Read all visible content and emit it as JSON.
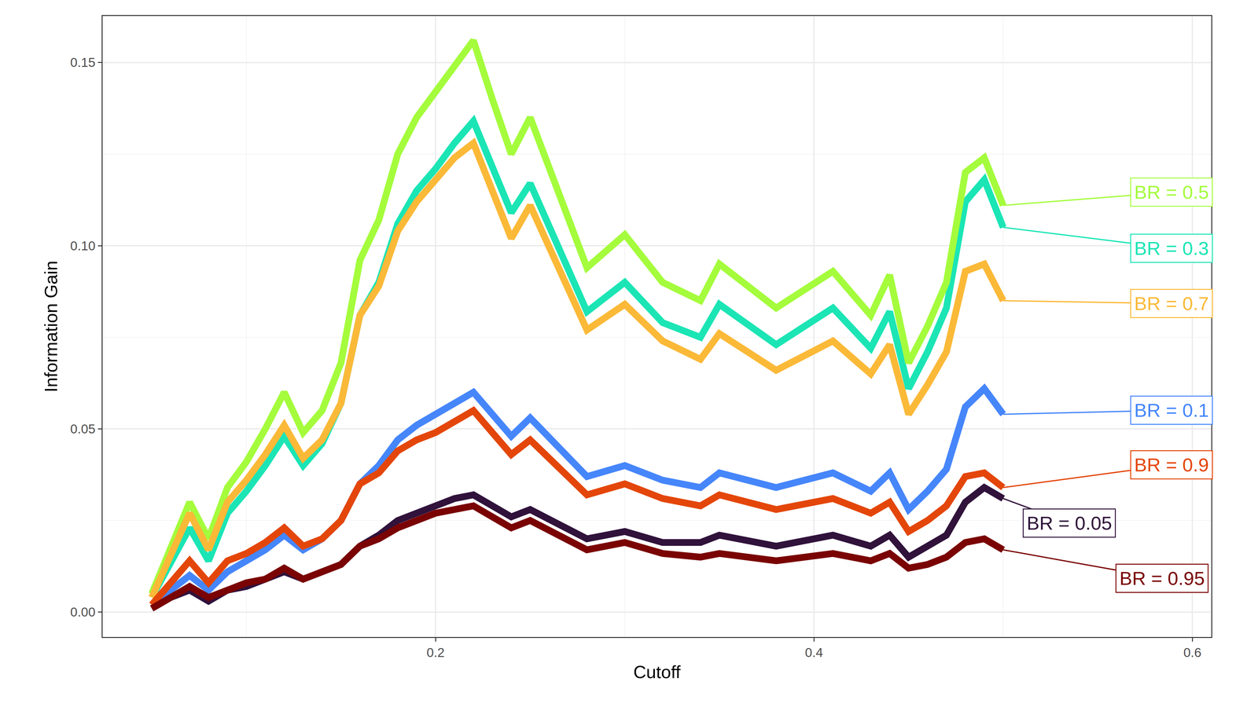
{
  "chart_data": {
    "type": "line",
    "xlabel": "Cutoff",
    "ylabel": "Information Gain",
    "x": [
      0.05,
      0.06,
      0.07,
      0.08,
      0.09,
      0.1,
      0.11,
      0.12,
      0.13,
      0.14,
      0.15,
      0.16,
      0.17,
      0.18,
      0.19,
      0.2,
      0.21,
      0.22,
      0.23,
      0.24,
      0.25,
      0.28,
      0.3,
      0.32,
      0.34,
      0.35,
      0.38,
      0.41,
      0.43,
      0.44,
      0.45,
      0.46,
      0.47,
      0.48,
      0.49,
      0.5
    ],
    "series": [
      {
        "name": "BR = 0.05",
        "color": "#30123b",
        "values": [
          0.001,
          0.004,
          0.006,
          0.003,
          0.006,
          0.007,
          0.009,
          0.011,
          0.009,
          0.011,
          0.013,
          0.018,
          0.021,
          0.025,
          0.027,
          0.029,
          0.031,
          0.032,
          0.029,
          0.026,
          0.028,
          0.02,
          0.022,
          0.019,
          0.019,
          0.021,
          0.018,
          0.021,
          0.018,
          0.021,
          0.015,
          0.018,
          0.021,
          0.03,
          0.034,
          0.031
        ]
      },
      {
        "name": "BR = 0.1",
        "color": "#4686fb",
        "values": [
          0.002,
          0.006,
          0.01,
          0.006,
          0.011,
          0.014,
          0.017,
          0.021,
          0.017,
          0.02,
          0.025,
          0.035,
          0.04,
          0.047,
          0.051,
          0.054,
          0.057,
          0.06,
          0.054,
          0.048,
          0.053,
          0.037,
          0.04,
          0.036,
          0.034,
          0.038,
          0.034,
          0.038,
          0.033,
          0.038,
          0.028,
          0.033,
          0.039,
          0.056,
          0.061,
          0.054
        ]
      },
      {
        "name": "BR = 0.3",
        "color": "#1be5b5",
        "values": [
          0.004,
          0.014,
          0.023,
          0.014,
          0.027,
          0.033,
          0.04,
          0.048,
          0.04,
          0.046,
          0.057,
          0.081,
          0.09,
          0.106,
          0.115,
          0.121,
          0.128,
          0.134,
          0.121,
          0.109,
          0.117,
          0.082,
          0.09,
          0.079,
          0.075,
          0.084,
          0.073,
          0.083,
          0.072,
          0.082,
          0.061,
          0.071,
          0.083,
          0.112,
          0.118,
          0.105
        ]
      },
      {
        "name": "BR = 0.5",
        "color": "#a4fc3c",
        "values": [
          0.005,
          0.018,
          0.03,
          0.02,
          0.034,
          0.041,
          0.05,
          0.06,
          0.049,
          0.055,
          0.068,
          0.096,
          0.107,
          0.125,
          0.135,
          0.142,
          0.149,
          0.156,
          0.14,
          0.125,
          0.135,
          0.094,
          0.103,
          0.09,
          0.085,
          0.095,
          0.083,
          0.093,
          0.081,
          0.092,
          0.068,
          0.078,
          0.09,
          0.12,
          0.124,
          0.111
        ]
      },
      {
        "name": "BR = 0.7",
        "color": "#fbb938",
        "values": [
          0.004,
          0.016,
          0.027,
          0.017,
          0.03,
          0.036,
          0.043,
          0.051,
          0.042,
          0.047,
          0.057,
          0.081,
          0.089,
          0.104,
          0.112,
          0.118,
          0.124,
          0.128,
          0.115,
          0.102,
          0.111,
          0.077,
          0.084,
          0.074,
          0.069,
          0.076,
          0.066,
          0.074,
          0.065,
          0.073,
          0.054,
          0.062,
          0.071,
          0.093,
          0.095,
          0.085
        ]
      },
      {
        "name": "BR = 0.9",
        "color": "#e4460a",
        "values": [
          0.002,
          0.008,
          0.014,
          0.008,
          0.014,
          0.016,
          0.019,
          0.023,
          0.018,
          0.02,
          0.025,
          0.035,
          0.038,
          0.044,
          0.047,
          0.049,
          0.052,
          0.055,
          0.049,
          0.043,
          0.047,
          0.032,
          0.035,
          0.031,
          0.029,
          0.032,
          0.028,
          0.031,
          0.027,
          0.03,
          0.022,
          0.025,
          0.029,
          0.037,
          0.038,
          0.034
        ]
      },
      {
        "name": "BR = 0.95",
        "color": "#7a0403",
        "values": [
          0.001,
          0.004,
          0.007,
          0.004,
          0.006,
          0.008,
          0.009,
          0.012,
          0.009,
          0.011,
          0.013,
          0.018,
          0.02,
          0.023,
          0.025,
          0.027,
          0.028,
          0.029,
          0.026,
          0.023,
          0.025,
          0.017,
          0.019,
          0.016,
          0.015,
          0.016,
          0.014,
          0.016,
          0.014,
          0.016,
          0.012,
          0.013,
          0.015,
          0.019,
          0.02,
          0.017
        ]
      }
    ],
    "xlim": [
      0.024,
      0.61
    ],
    "ylim": [
      -0.0068,
      0.1627
    ],
    "xticks": [
      0.2,
      0.4,
      0.6
    ],
    "yticks": [
      {
        "value": 0,
        "label": "0.00"
      },
      0.05,
      {
        "value": 0.1,
        "label": "0.10"
      },
      0.15
    ],
    "grid": true
  }
}
